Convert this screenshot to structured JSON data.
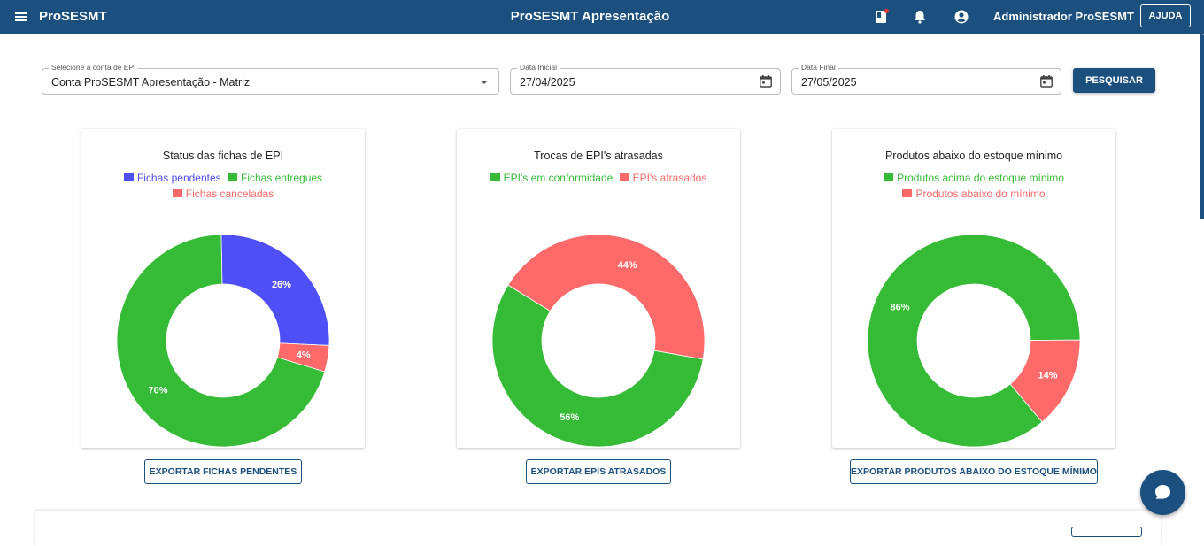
{
  "colors": {
    "primary": "#1a4f7e",
    "blue": "#4f4ff7",
    "green": "#35bb35",
    "red": "#fe6a6a"
  },
  "header": {
    "brand": "ProSESMT",
    "title": "ProSESMT Apresentação",
    "user": "Administrador ProSESMT",
    "help": "AJUDA",
    "icons": [
      "menu-icon",
      "notes-icon",
      "bell-icon",
      "account-circle-icon"
    ]
  },
  "filters": {
    "account": {
      "label": "Selecione a conta de EPI",
      "value": "Conta ProSESMT Apresentação - Matriz"
    },
    "start": {
      "label": "Data Inicial",
      "value": "27/04/2025"
    },
    "end": {
      "label": "Data Final",
      "value": "27/05/2025"
    },
    "search_button": "PESQUISAR"
  },
  "charts": [
    {
      "title": "Status das fichas de EPI",
      "legend": [
        {
          "label": "Fichas pendentes",
          "color": "#4f4ff7"
        },
        {
          "label": "Fichas entregues",
          "color": "#35bb35"
        },
        {
          "label": "Fichas canceladas",
          "color": "#fe6a6a"
        }
      ],
      "slices": [
        {
          "label": "Fichas pendentes",
          "percent_label": "26%"
        },
        {
          "label": "Fichas canceladas",
          "percent_label": "4%"
        },
        {
          "label": "Fichas entregues",
          "percent_label": "70%"
        }
      ],
      "export_button": "EXPORTAR FICHAS PENDENTES"
    },
    {
      "title": "Trocas de EPI's atrasadas",
      "legend": [
        {
          "label": "EPI's em conformidade",
          "color": "#35bb35"
        },
        {
          "label": "EPI's atrasados",
          "color": "#fe6a6a"
        }
      ],
      "slices": [
        {
          "label": "EPI's em conformidade",
          "percent_label": "56%"
        },
        {
          "label": "EPI's atrasados",
          "percent_label": "44%"
        }
      ],
      "export_button": "EXPORTAR EPIS ATRASADOS"
    },
    {
      "title": "Produtos abaixo do estoque mínimo",
      "legend": [
        {
          "label": "Produtos acima do estoque mínimo",
          "color": "#35bb35"
        },
        {
          "label": "Produtos abaixo do mínimo",
          "color": "#fe6a6a"
        }
      ],
      "slices": [
        {
          "label": "Produtos acima do estoque mínimo",
          "percent_label": "86%"
        },
        {
          "label": "Produtos abaixo do mínimo",
          "percent_label": "14%"
        }
      ],
      "export_button": "EXPORTAR PRODUTOS ABAIXO DO ESTOQUE MÍNIMO"
    }
  ],
  "chart_data": [
    {
      "type": "pie",
      "title": "Status das fichas de EPI",
      "categories": [
        "Fichas pendentes",
        "Fichas canceladas",
        "Fichas entregues"
      ],
      "values": [
        26,
        4,
        70
      ],
      "colors": [
        "#4f4ff7",
        "#fe6a6a",
        "#35bb35"
      ],
      "start_angle_deg": -1,
      "legend": "top"
    },
    {
      "type": "pie",
      "title": "Trocas de EPI's atrasadas",
      "categories": [
        "EPI's em conformidade",
        "EPI's atrasados"
      ],
      "values": [
        56,
        44
      ],
      "colors": [
        "#35bb35",
        "#fe6a6a"
      ],
      "start_angle_deg": 100,
      "legend": "top"
    },
    {
      "type": "pie",
      "title": "Produtos abaixo do estoque mínimo",
      "categories": [
        "Produtos acima do estoque mínimo",
        "Produtos abaixo do mínimo"
      ],
      "values": [
        86,
        14
      ],
      "colors": [
        "#35bb35",
        "#fe6a6a"
      ],
      "start_angle_deg": 140,
      "legend": "top"
    }
  ]
}
